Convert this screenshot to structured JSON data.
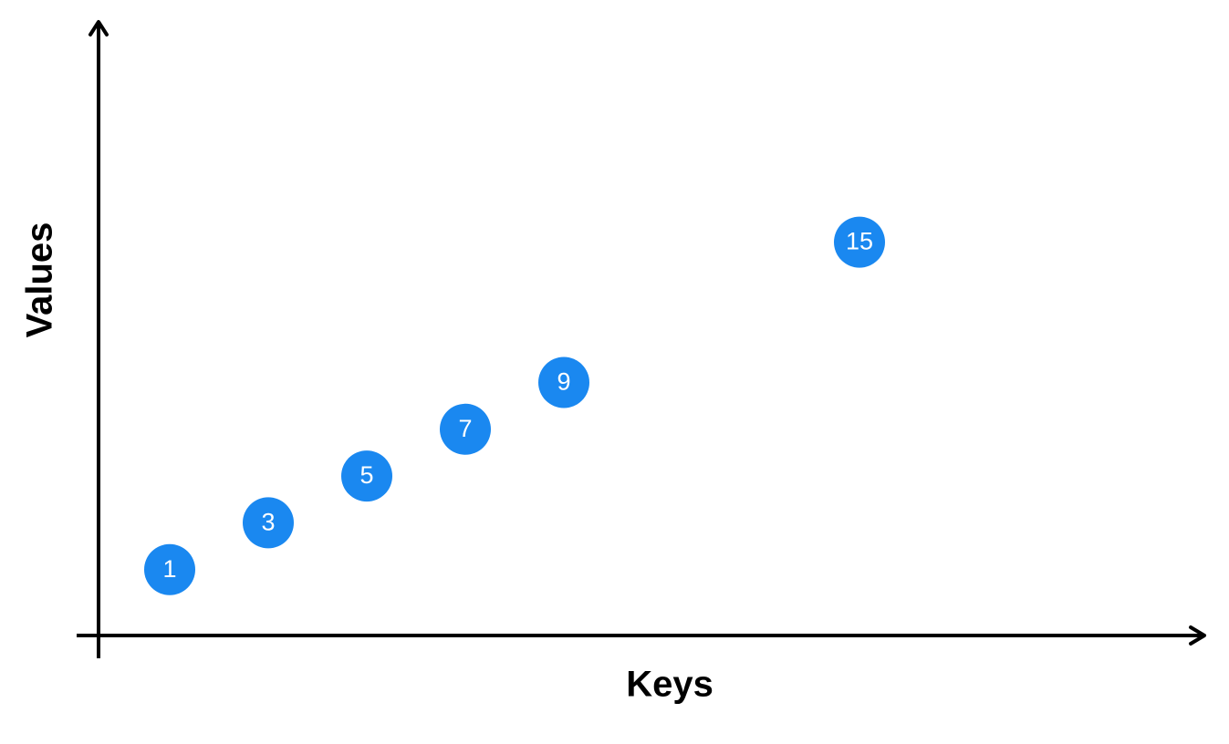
{
  "chart_data": {
    "type": "scatter",
    "title": "",
    "xlabel": "Keys",
    "ylabel": "Values",
    "grid": false,
    "legend": "none",
    "point_color": "#1a88f0",
    "label_color": "#ffffff",
    "axis_color": "#000000",
    "points": [
      {
        "label": "1",
        "x": 1,
        "y": 1
      },
      {
        "label": "3",
        "x": 2,
        "y": 2
      },
      {
        "label": "5",
        "x": 3,
        "y": 3
      },
      {
        "label": "7",
        "x": 4,
        "y": 4
      },
      {
        "label": "9",
        "x": 5,
        "y": 5
      },
      {
        "label": "15",
        "x": 8,
        "y": 8
      }
    ]
  }
}
